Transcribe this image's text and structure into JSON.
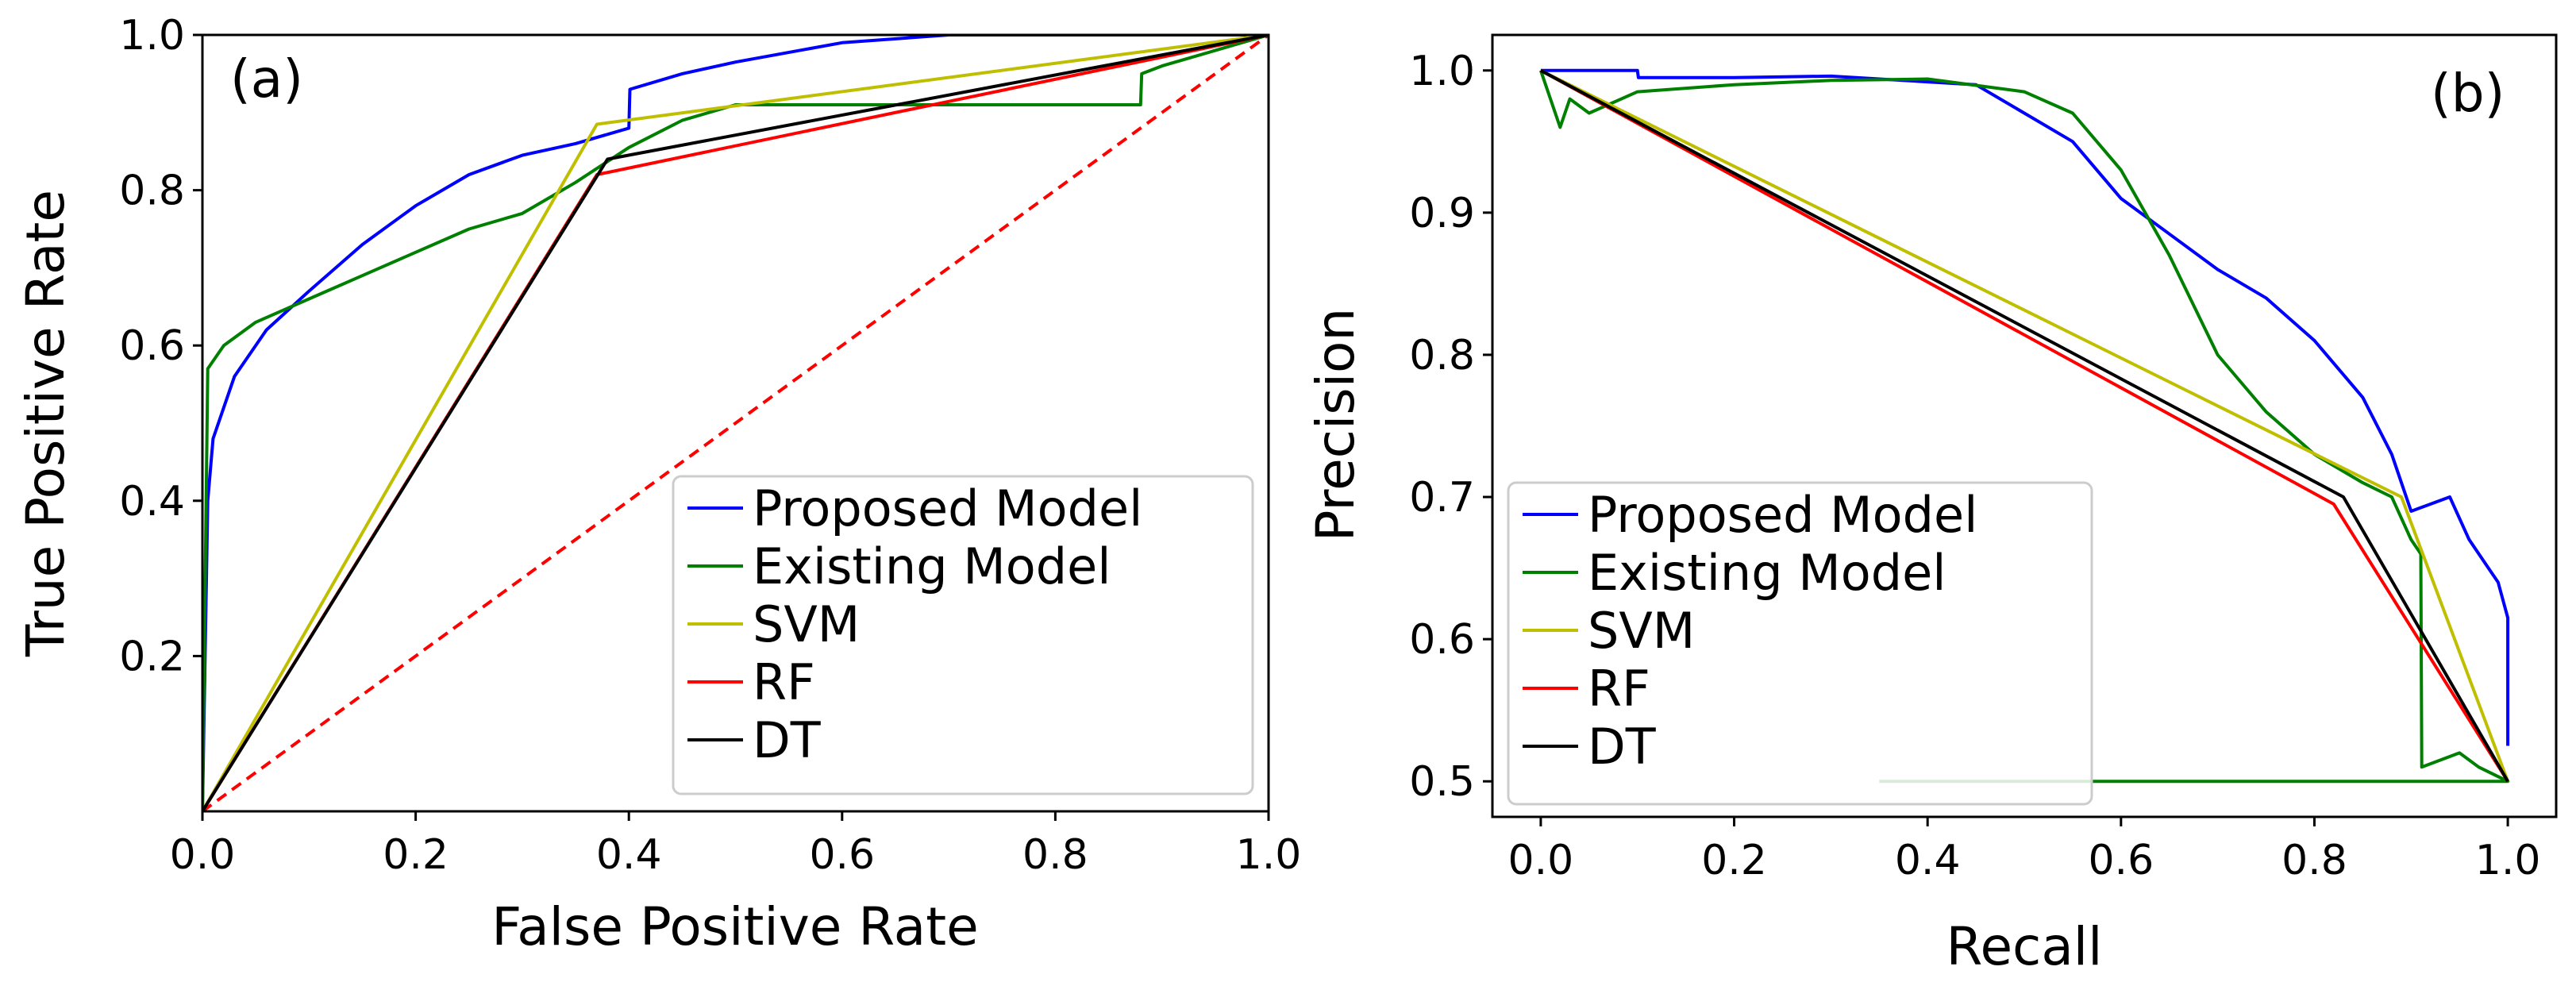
{
  "chart_data": [
    {
      "type": "line",
      "panel_label": "(a)",
      "xlabel": "False Positive Rate",
      "ylabel": "True Positive Rate",
      "xlim": [
        0,
        1
      ],
      "ylim": [
        0,
        1
      ],
      "x_ticks": [
        "0.0",
        "0.2",
        "0.4",
        "0.6",
        "0.8",
        "1.0"
      ],
      "y_ticks": [
        "0.2",
        "0.4",
        "0.6",
        "0.8",
        "1.0"
      ],
      "legend_position": "lower-right",
      "series": [
        {
          "name": "Proposed Model",
          "color": "#0000ff",
          "x": [
            0,
            0.005,
            0.01,
            0.03,
            0.06,
            0.1,
            0.15,
            0.2,
            0.25,
            0.3,
            0.35,
            0.4,
            0.401,
            0.45,
            0.5,
            0.6,
            0.7,
            0.8,
            0.9,
            1.0
          ],
          "y": [
            0,
            0.4,
            0.48,
            0.56,
            0.62,
            0.67,
            0.73,
            0.78,
            0.82,
            0.845,
            0.86,
            0.88,
            0.93,
            0.95,
            0.965,
            0.99,
            1.0,
            1.0,
            1.0,
            1.0
          ]
        },
        {
          "name": "Existing Model",
          "color": "#008000",
          "x": [
            0,
            0.005,
            0.02,
            0.05,
            0.1,
            0.15,
            0.2,
            0.25,
            0.3,
            0.35,
            0.4,
            0.45,
            0.5,
            0.55,
            0.6,
            0.88,
            0.881,
            0.9,
            0.95,
            1.0
          ],
          "y": [
            0,
            0.57,
            0.6,
            0.63,
            0.66,
            0.69,
            0.72,
            0.75,
            0.77,
            0.81,
            0.855,
            0.89,
            0.91,
            0.91,
            0.91,
            0.91,
            0.95,
            0.96,
            0.98,
            1.0
          ]
        },
        {
          "name": "SVM",
          "color": "#bfbf00",
          "x": [
            0,
            0.37,
            1.0
          ],
          "y": [
            0,
            0.885,
            1.0
          ]
        },
        {
          "name": "RF",
          "color": "#ff0000",
          "x": [
            0,
            0.37,
            1.0
          ],
          "y": [
            0,
            0.82,
            1.0
          ]
        },
        {
          "name": "DT",
          "color": "#000000",
          "x": [
            0,
            0.38,
            1.0
          ],
          "y": [
            0,
            0.84,
            1.0
          ]
        }
      ],
      "reference_line": {
        "color": "#ff0000",
        "style": "dashed",
        "x": [
          0,
          1
        ],
        "y": [
          0,
          1
        ]
      }
    },
    {
      "type": "line",
      "panel_label": "(b)",
      "xlabel": "Recall",
      "ylabel": "Precision",
      "xlim": [
        -0.05,
        1.05
      ],
      "ylim": [
        0.475,
        1.025
      ],
      "x_ticks": [
        "0.0",
        "0.2",
        "0.4",
        "0.6",
        "0.8",
        "1.0"
      ],
      "y_ticks": [
        "0.5",
        "0.6",
        "0.7",
        "0.8",
        "0.9",
        "1.0"
      ],
      "legend_position": "lower-left",
      "series": [
        {
          "name": "Proposed Model",
          "color": "#0000ff",
          "x": [
            0,
            0.1,
            0.101,
            0.2,
            0.3,
            0.45,
            0.5,
            0.55,
            0.6,
            0.65,
            0.7,
            0.75,
            0.8,
            0.85,
            0.88,
            0.9,
            0.94,
            0.96,
            0.98,
            0.99,
            1.0,
            1.0
          ],
          "y": [
            1.0,
            1.0,
            0.995,
            0.995,
            0.996,
            0.99,
            0.97,
            0.95,
            0.91,
            0.885,
            0.86,
            0.84,
            0.81,
            0.77,
            0.73,
            0.69,
            0.7,
            0.67,
            0.65,
            0.64,
            0.615,
            0.525
          ]
        },
        {
          "name": "Existing Model",
          "color": "#008000",
          "x": [
            0,
            0.01,
            0.02,
            0.03,
            0.05,
            0.1,
            0.2,
            0.3,
            0.4,
            0.5,
            0.55,
            0.6,
            0.65,
            0.7,
            0.75,
            0.8,
            0.85,
            0.88,
            0.9,
            0.91,
            0.911,
            0.95,
            0.97,
            1.0,
            0.35
          ],
          "y": [
            1.0,
            0.98,
            0.96,
            0.98,
            0.97,
            0.985,
            0.99,
            0.993,
            0.994,
            0.985,
            0.97,
            0.93,
            0.87,
            0.8,
            0.76,
            0.73,
            0.71,
            0.7,
            0.67,
            0.66,
            0.51,
            0.52,
            0.51,
            0.5,
            0.5
          ]
        },
        {
          "name": "SVM",
          "color": "#bfbf00",
          "x": [
            0,
            0.89,
            1.0
          ],
          "y": [
            1.0,
            0.7,
            0.5
          ]
        },
        {
          "name": "RF",
          "color": "#ff0000",
          "x": [
            0,
            0.82,
            1.0
          ],
          "y": [
            1.0,
            0.695,
            0.5
          ]
        },
        {
          "name": "DT",
          "color": "#000000",
          "x": [
            0,
            0.83,
            1.0
          ],
          "y": [
            1.0,
            0.7,
            0.5
          ]
        }
      ]
    }
  ]
}
